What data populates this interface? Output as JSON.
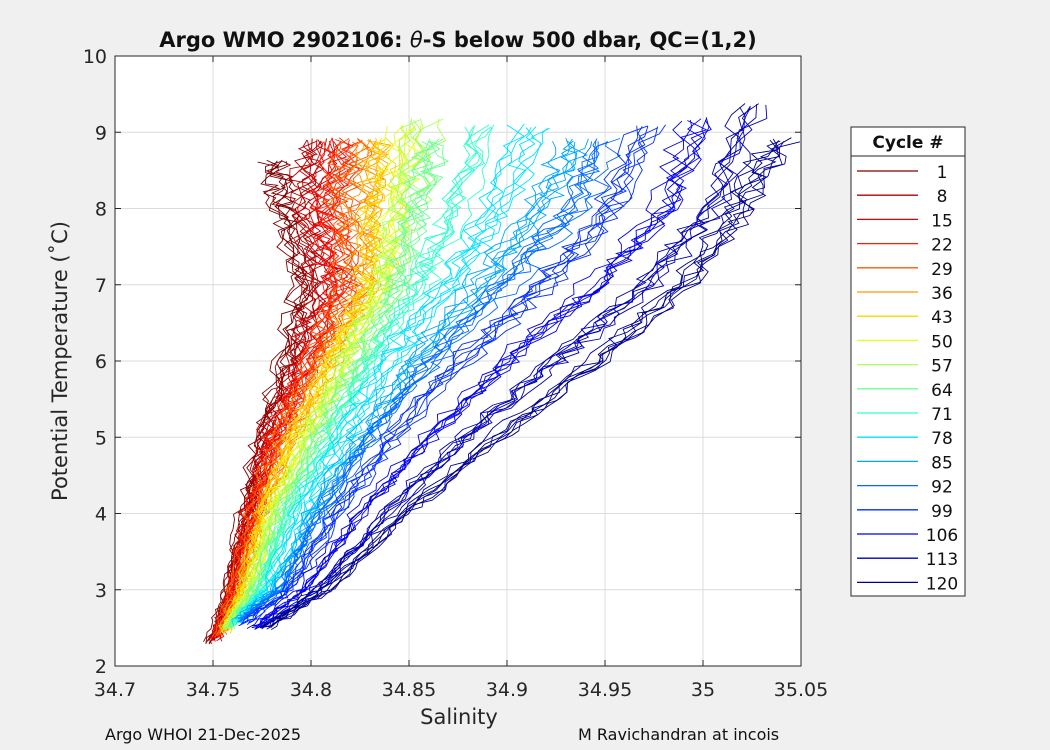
{
  "chart_data": {
    "type": "line",
    "title": "Argo WMO 2902106: θ-S below 500 dbar,  QC=(1,2)",
    "title_parts": [
      "Argo WMO 2902106: ",
      "θ",
      "-S below 500 dbar,  QC=(1,2)"
    ],
    "xlabel": "Salinity",
    "ylabel": "Potential Temperature (˚C)",
    "xlim": [
      34.7,
      35.05
    ],
    "ylim": [
      2,
      10
    ],
    "xticks": [
      34.7,
      34.75,
      34.8,
      34.85,
      34.9,
      34.95,
      35,
      35.05
    ],
    "xtick_labels": [
      "34.7",
      "34.75",
      "34.8",
      "34.85",
      "34.9",
      "34.95",
      "35",
      "35.05"
    ],
    "yticks": [
      2,
      3,
      4,
      5,
      6,
      7,
      8,
      9,
      10
    ],
    "ytick_labels": [
      "2",
      "3",
      "4",
      "5",
      "6",
      "7",
      "8",
      "9",
      "10"
    ],
    "grid": true,
    "legend": {
      "title": "Cycle #",
      "placement": "outside-right",
      "entries": [
        "1",
        "8",
        "15",
        "22",
        "29",
        "36",
        "43",
        "50",
        "57",
        "64",
        "71",
        "78",
        "85",
        "92",
        "99",
        "106",
        "113",
        "120"
      ],
      "colors": [
        "#7f0000",
        "#b30000",
        "#e00000",
        "#ff1a00",
        "#ff5a00",
        "#ff9800",
        "#ffd300",
        "#e6ff1a",
        "#a9ff56",
        "#6dff92",
        "#31ffce",
        "#00e2ff",
        "#00a6ff",
        "#006aff",
        "#002eff",
        "#0000f2",
        "#0000b6",
        "#00008f"
      ]
    },
    "series": [
      {
        "name": "1",
        "color": "#7f0000",
        "profile": [
          [
            34.748,
            2.3
          ],
          [
            34.757,
            3.0
          ],
          [
            34.766,
            4.0
          ],
          [
            34.774,
            5.0
          ],
          [
            34.787,
            6.0
          ],
          [
            34.795,
            7.0
          ],
          [
            34.785,
            8.0
          ],
          [
            34.78,
            8.7
          ]
        ]
      },
      {
        "name": "8",
        "color": "#b30000",
        "profile": [
          [
            34.749,
            2.35
          ],
          [
            34.758,
            3.0
          ],
          [
            34.767,
            4.0
          ],
          [
            34.776,
            5.0
          ],
          [
            34.79,
            6.0
          ],
          [
            34.8,
            7.0
          ],
          [
            34.793,
            8.0
          ],
          [
            34.797,
            9.0
          ]
        ]
      },
      {
        "name": "15",
        "color": "#e00000",
        "profile": [
          [
            34.751,
            2.35
          ],
          [
            34.76,
            3.0
          ],
          [
            34.768,
            4.0
          ],
          [
            34.779,
            5.0
          ],
          [
            34.796,
            6.0
          ],
          [
            34.808,
            7.0
          ],
          [
            34.8,
            8.0
          ],
          [
            34.807,
            9.0
          ]
        ]
      },
      {
        "name": "22",
        "color": "#ff1a00",
        "profile": [
          [
            34.752,
            2.4
          ],
          [
            34.761,
            3.0
          ],
          [
            34.77,
            4.0
          ],
          [
            34.782,
            5.0
          ],
          [
            34.8,
            6.0
          ],
          [
            34.815,
            7.0
          ],
          [
            34.81,
            8.0
          ],
          [
            34.815,
            9.0
          ]
        ]
      },
      {
        "name": "29",
        "color": "#ff5a00",
        "profile": [
          [
            34.753,
            2.4
          ],
          [
            34.762,
            3.0
          ],
          [
            34.772,
            4.0
          ],
          [
            34.785,
            5.0
          ],
          [
            34.804,
            6.0
          ],
          [
            34.82,
            7.0
          ],
          [
            34.818,
            8.0
          ],
          [
            34.823,
            9.0
          ]
        ]
      },
      {
        "name": "36",
        "color": "#ff9800",
        "profile": [
          [
            34.755,
            2.45
          ],
          [
            34.764,
            3.0
          ],
          [
            34.774,
            4.0
          ],
          [
            34.789,
            5.0
          ],
          [
            34.808,
            6.0
          ],
          [
            34.826,
            7.0
          ],
          [
            34.826,
            8.0
          ],
          [
            34.83,
            9.0
          ]
        ]
      },
      {
        "name": "43",
        "color": "#ffd300",
        "profile": [
          [
            34.756,
            2.45
          ],
          [
            34.766,
            3.0
          ],
          [
            34.777,
            4.0
          ],
          [
            34.793,
            5.0
          ],
          [
            34.812,
            6.0
          ],
          [
            34.832,
            7.0
          ],
          [
            34.836,
            8.0
          ],
          [
            34.842,
            9.0
          ]
        ]
      },
      {
        "name": "50",
        "color": "#e6ff1a",
        "profile": [
          [
            34.757,
            2.5
          ],
          [
            34.768,
            3.0
          ],
          [
            34.779,
            4.0
          ],
          [
            34.796,
            5.0
          ],
          [
            34.816,
            6.0
          ],
          [
            34.836,
            7.0
          ],
          [
            34.842,
            8.0
          ],
          [
            34.85,
            9.2
          ]
        ]
      },
      {
        "name": "57",
        "color": "#a9ff56",
        "profile": [
          [
            34.758,
            2.5
          ],
          [
            34.77,
            3.0
          ],
          [
            34.782,
            4.0
          ],
          [
            34.8,
            5.0
          ],
          [
            34.82,
            6.0
          ],
          [
            34.84,
            7.0
          ],
          [
            34.85,
            8.0
          ],
          [
            34.86,
            9.3
          ]
        ]
      },
      {
        "name": "64",
        "color": "#6dff92",
        "profile": [
          [
            34.759,
            2.5
          ],
          [
            34.772,
            3.0
          ],
          [
            34.786,
            4.0
          ],
          [
            34.805,
            5.0
          ],
          [
            34.826,
            6.0
          ],
          [
            34.845,
            7.0
          ],
          [
            34.855,
            8.0
          ],
          [
            34.865,
            9.0
          ]
        ]
      },
      {
        "name": "71",
        "color": "#31ffce",
        "profile": [
          [
            34.761,
            2.55
          ],
          [
            34.775,
            3.0
          ],
          [
            34.79,
            4.0
          ],
          [
            34.81,
            5.0
          ],
          [
            34.832,
            6.0
          ],
          [
            34.855,
            7.0
          ],
          [
            34.875,
            8.0
          ],
          [
            34.89,
            9.2
          ]
        ]
      },
      {
        "name": "78",
        "color": "#00e2ff",
        "profile": [
          [
            34.762,
            2.55
          ],
          [
            34.778,
            3.0
          ],
          [
            34.795,
            4.0
          ],
          [
            34.816,
            5.0
          ],
          [
            34.84,
            6.0
          ],
          [
            34.87,
            7.0
          ],
          [
            34.895,
            8.0
          ],
          [
            34.915,
            9.2
          ]
        ]
      },
      {
        "name": "85",
        "color": "#00a6ff",
        "profile": [
          [
            34.763,
            2.6
          ],
          [
            34.781,
            3.0
          ],
          [
            34.8,
            4.0
          ],
          [
            34.824,
            5.0
          ],
          [
            34.85,
            6.0
          ],
          [
            34.885,
            7.0
          ],
          [
            34.915,
            8.0
          ],
          [
            34.935,
            9.0
          ]
        ]
      },
      {
        "name": "92",
        "color": "#006aff",
        "profile": [
          [
            34.765,
            2.6
          ],
          [
            34.785,
            3.0
          ],
          [
            34.806,
            4.0
          ],
          [
            34.832,
            5.0
          ],
          [
            34.862,
            6.0
          ],
          [
            34.9,
            7.0
          ],
          [
            34.935,
            8.0
          ],
          [
            34.955,
            9.0
          ]
        ]
      },
      {
        "name": "99",
        "color": "#002eff",
        "profile": [
          [
            34.767,
            2.55
          ],
          [
            34.79,
            3.0
          ],
          [
            34.814,
            4.0
          ],
          [
            34.843,
            5.0
          ],
          [
            34.878,
            6.0
          ],
          [
            34.92,
            7.0
          ],
          [
            34.955,
            8.0
          ],
          [
            34.975,
            9.2
          ]
        ]
      },
      {
        "name": "106",
        "color": "#0000f2",
        "profile": [
          [
            34.77,
            2.5
          ],
          [
            34.796,
            3.0
          ],
          [
            34.825,
            4.0
          ],
          [
            34.86,
            5.0
          ],
          [
            34.9,
            6.0
          ],
          [
            34.945,
            7.0
          ],
          [
            34.98,
            8.0
          ],
          [
            35.0,
            9.3
          ]
        ]
      },
      {
        "name": "113",
        "color": "#0000b6",
        "profile": [
          [
            34.774,
            2.5
          ],
          [
            34.803,
            3.0
          ],
          [
            34.838,
            4.0
          ],
          [
            34.878,
            5.0
          ],
          [
            34.925,
            6.0
          ],
          [
            34.97,
            7.0
          ],
          [
            35.005,
            8.0
          ],
          [
            35.025,
            9.5
          ]
        ]
      },
      {
        "name": "120",
        "color": "#00008f",
        "profile": [
          [
            34.777,
            2.5
          ],
          [
            34.808,
            3.0
          ],
          [
            34.848,
            4.0
          ],
          [
            34.895,
            5.0
          ],
          [
            34.945,
            6.0
          ],
          [
            34.99,
            7.0
          ],
          [
            35.02,
            8.0
          ],
          [
            35.04,
            9.0
          ]
        ]
      }
    ]
  },
  "footer": {
    "left": "Argo WHOI 21-Dec-2025",
    "right": "M Ravichandran at incois"
  }
}
